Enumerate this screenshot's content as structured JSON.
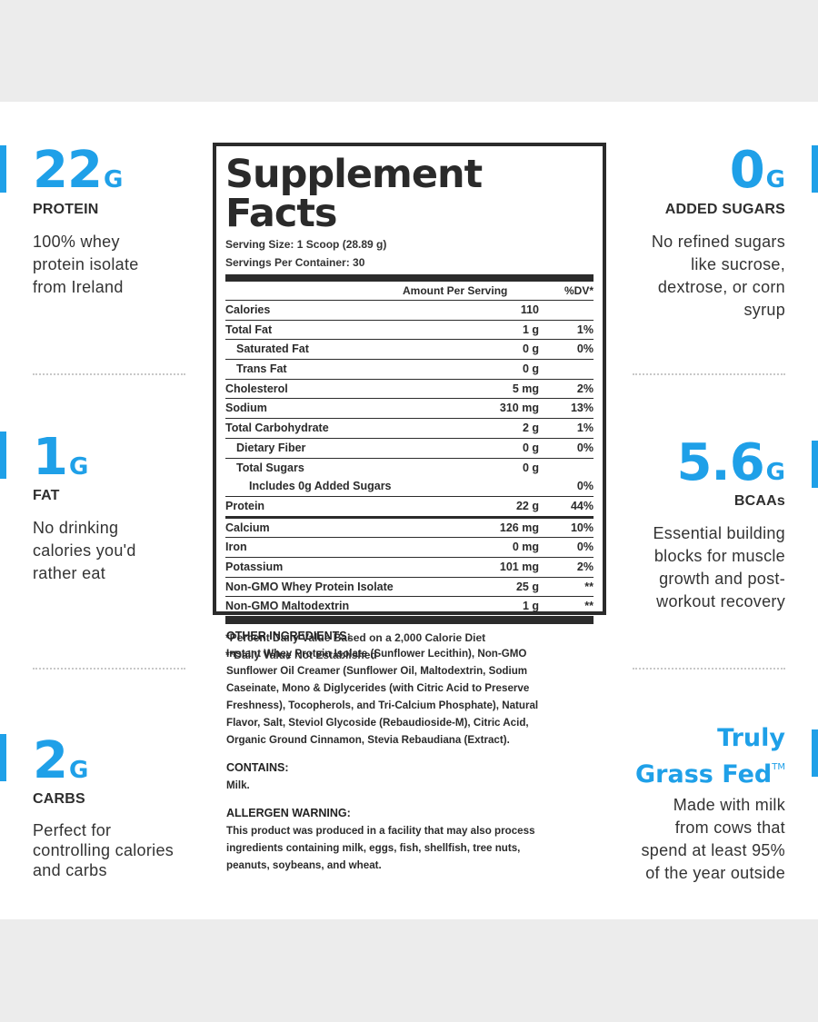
{
  "features": {
    "protein": {
      "value": "22",
      "unit": "G",
      "label": "PROTEIN",
      "desc": [
        "100% whey",
        "protein isolate",
        "from Ireland"
      ]
    },
    "fat": {
      "value": "1",
      "unit": "G",
      "label": "FAT",
      "desc": [
        "No drinking",
        "calories you'd",
        "rather eat"
      ]
    },
    "carbs": {
      "value": "2",
      "unit": "G",
      "label": "CARBS",
      "desc": [
        "Perfect for",
        "controlling calories",
        "and carbs"
      ]
    },
    "sugars": {
      "value": "0",
      "unit": "G",
      "label": "ADDED SUGARS",
      "desc": [
        "No refined sugars",
        "like sucrose,",
        "dextrose, or corn",
        "syrup"
      ]
    },
    "bcaa": {
      "value": "5.6",
      "unit": "G",
      "label": "BCAAs",
      "desc": [
        "Essential building",
        "blocks for muscle",
        "growth and post-",
        "workout recovery"
      ]
    },
    "grassfed": {
      "line1": "Truly",
      "line2": "Grass Fed",
      "tm": "TM",
      "desc": [
        "Made with milk",
        "from cows that",
        "spend at least 95%",
        "of the year outside"
      ]
    }
  },
  "facts": {
    "title": "Supplement Facts",
    "serving_size": "Serving Size: 1 Scoop (28.89 g)",
    "servings_per_container": "Servings Per Container: 30",
    "col_amount": "Amount Per Serving",
    "col_dv": "%DV*",
    "rows": [
      {
        "name": "Calories",
        "amount": "110",
        "dv": ""
      },
      {
        "name": "Total Fat",
        "amount": "1 g",
        "dv": "1%"
      },
      {
        "name": "Saturated Fat",
        "amount": "0 g",
        "dv": "0%"
      },
      {
        "name": "Trans Fat",
        "amount": "0 g",
        "dv": ""
      },
      {
        "name": "Cholesterol",
        "amount": "5 mg",
        "dv": "2%"
      },
      {
        "name": "Sodium",
        "amount": "310 mg",
        "dv": "13%"
      },
      {
        "name": "Total Carbohydrate",
        "amount": "2 g",
        "dv": "1%"
      },
      {
        "name": "Dietary Fiber",
        "amount": "0 g",
        "dv": "0%"
      },
      {
        "name": "Total Sugars",
        "amount": "0 g",
        "dv": ""
      },
      {
        "name": "Includes 0g Added Sugars",
        "amount": "",
        "dv": "0%"
      },
      {
        "name": "Protein",
        "amount": "22 g",
        "dv": "44%"
      },
      {
        "name": "Calcium",
        "amount": "126 mg",
        "dv": "10%"
      },
      {
        "name": "Iron",
        "amount": "0 mg",
        "dv": "0%"
      },
      {
        "name": "Potassium",
        "amount": "101 mg",
        "dv": "2%"
      },
      {
        "name": "Non-GMO Whey Protein Isolate",
        "amount": "25 g",
        "dv": "**"
      },
      {
        "name": "Non-GMO Maltodextrin",
        "amount": "1 g",
        "dv": "**"
      }
    ],
    "footnote1": "*Percent Daily Value Based on a 2,000 Calorie Diet",
    "footnote2": "**Daily Value Not Established"
  },
  "ingredients": {
    "other_head": "OTHER INGREDIENTS:",
    "other_lines": [
      "Instant Whey Protein Isolate (Sunflower Lecithin), Non-GMO",
      "Sunflower Oil Creamer (Sunflower Oil, Maltodextrin, Sodium",
      "Caseinate, Mono & Diglycerides (with Citric Acid to Preserve",
      "Freshness), Tocopherols, and Tri-Calcium Phosphate), Natural",
      "Flavor, Salt, Steviol Glycoside (Rebaudioside-M), Citric Acid,",
      "Organic Ground Cinnamon, Stevia Rebaudiana (Extract)."
    ],
    "contains_head": "CONTAINS:",
    "contains_body": "Milk.",
    "allergen_head": "ALLERGEN WARNING:",
    "allergen_lines": [
      "This product was produced in a facility that may also process",
      "ingredients containing milk, eggs, fish, shellfish, tree nuts,",
      "peanuts, soybeans, and wheat."
    ]
  },
  "colors": {
    "accent": "#1fa0e8",
    "text": "#2b2b2b",
    "background": "#ececec"
  }
}
